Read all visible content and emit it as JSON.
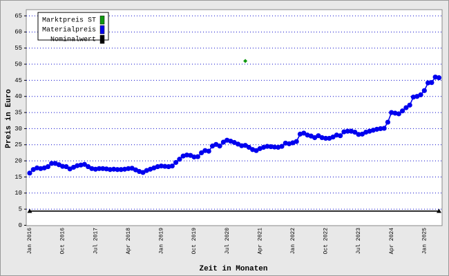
{
  "chart_data": {
    "type": "line",
    "y_label": "Preis in Euro",
    "x_label": "Zeit in Monaten",
    "legend": "upper left",
    "grid": true,
    "ylim": [
      0,
      65
    ],
    "yticks": [
      0,
      5,
      10,
      15,
      20,
      25,
      30,
      35,
      40,
      45,
      50,
      55,
      60,
      65
    ],
    "categories": [
      "Jan 2016",
      null,
      null,
      null,
      null,
      null,
      null,
      null,
      null,
      "Oct 2016",
      null,
      null,
      null,
      null,
      null,
      null,
      null,
      null,
      "Jul 2017",
      null,
      null,
      null,
      null,
      null,
      null,
      null,
      null,
      "Apr 2018",
      null,
      null,
      null,
      null,
      null,
      null,
      null,
      null,
      "Jan 2019",
      null,
      null,
      null,
      null,
      null,
      null,
      null,
      null,
      "Oct 2019",
      null,
      null,
      null,
      null,
      null,
      null,
      null,
      null,
      "Jul 2020",
      null,
      null,
      null,
      null,
      null,
      null,
      null,
      null,
      "Apr 2021",
      null,
      null,
      null,
      null,
      null,
      null,
      null,
      null,
      "Jan 2022",
      null,
      null,
      null,
      null,
      null,
      null,
      null,
      null,
      "Oct 2022",
      null,
      null,
      null,
      null,
      null,
      null,
      null,
      null,
      "Jul 2023",
      null,
      null,
      null,
      null,
      null,
      null,
      null,
      null,
      "Apr 2024",
      null,
      null,
      null,
      null,
      null,
      null,
      null,
      null,
      "Jan 2025",
      null,
      null,
      null,
      null
    ],
    "series": [
      {
        "name": "Marktpreis ST",
        "color": "#119911",
        "marker": "diamond",
        "values": [
          null,
          null,
          null,
          null,
          null,
          null,
          null,
          null,
          null,
          null,
          null,
          null,
          null,
          null,
          null,
          null,
          null,
          null,
          null,
          null,
          null,
          null,
          null,
          null,
          null,
          null,
          null,
          null,
          null,
          null,
          null,
          null,
          null,
          null,
          null,
          null,
          null,
          null,
          null,
          null,
          null,
          null,
          null,
          null,
          null,
          null,
          null,
          null,
          null,
          null,
          null,
          null,
          null,
          null,
          null,
          null,
          null,
          null,
          null,
          51,
          null,
          null,
          null,
          null,
          null,
          null,
          null,
          null,
          null,
          null,
          null,
          null,
          null,
          null,
          null,
          null,
          null,
          null,
          null,
          null,
          null,
          null,
          null,
          null,
          null,
          null,
          null,
          null,
          null,
          null,
          null,
          null,
          null,
          null,
          null,
          null,
          null,
          null,
          null,
          null,
          null,
          null,
          null,
          null,
          null,
          null,
          null,
          null,
          null,
          null,
          null,
          null,
          null
        ]
      },
      {
        "name": "Materialpreis",
        "color": "#0000ee",
        "marker": "circle",
        "values": [
          16.2,
          17.3,
          17.8,
          17.6,
          17.8,
          18.2,
          19.2,
          19.2,
          18.8,
          18.3,
          18.2,
          17.5,
          18.0,
          18.5,
          18.7,
          18.9,
          18.2,
          17.6,
          17.4,
          17.6,
          17.6,
          17.5,
          17.3,
          17.4,
          17.3,
          17.3,
          17.4,
          17.6,
          17.7,
          17.2,
          16.7,
          16.4,
          17.0,
          17.4,
          17.8,
          18.2,
          18.4,
          18.3,
          18.2,
          18.4,
          19.5,
          20.5,
          21.5,
          21.8,
          21.7,
          21.2,
          21.3,
          22.5,
          23.2,
          23.0,
          24.6,
          25.1,
          24.6,
          25.8,
          26.4,
          26.1,
          25.7,
          25.2,
          24.7,
          24.8,
          24.2,
          23.5,
          23.2,
          23.8,
          24.2,
          24.5,
          24.4,
          24.3,
          24.2,
          24.5,
          25.5,
          25.3,
          25.6,
          26.0,
          28.3,
          28.6,
          28.0,
          27.7,
          27.2,
          27.8,
          27.2,
          27.0,
          27.0,
          27.4,
          28.0,
          27.8,
          29.0,
          29.2,
          29.2,
          28.9,
          28.2,
          28.3,
          28.9,
          29.2,
          29.5,
          29.8,
          30.0,
          30.1,
          32.0,
          35.0,
          34.8,
          34.6,
          35.5,
          36.5,
          37.3,
          39.8,
          40.0,
          40.5,
          41.8,
          44.2,
          44.3,
          46.0,
          45.8
        ]
      },
      {
        "name": "Nominalwert",
        "color": "#000000",
        "marker": "triangle",
        "values": [
          4.4,
          4.4,
          4.4,
          4.4,
          4.4,
          4.4,
          4.4,
          4.4,
          4.4,
          4.4,
          4.4,
          4.4,
          4.4,
          4.4,
          4.4,
          4.4,
          4.4,
          4.4,
          4.4,
          4.4,
          4.4,
          4.4,
          4.4,
          4.4,
          4.4,
          4.4,
          4.4,
          4.4,
          4.4,
          4.4,
          4.4,
          4.4,
          4.4,
          4.4,
          4.4,
          4.4,
          4.4,
          4.4,
          4.4,
          4.4,
          4.4,
          4.4,
          4.4,
          4.4,
          4.4,
          4.4,
          4.4,
          4.4,
          4.4,
          4.4,
          4.4,
          4.4,
          4.4,
          4.4,
          4.4,
          4.4,
          4.4,
          4.4,
          4.4,
          4.4,
          4.4,
          4.4,
          4.4,
          4.4,
          4.4,
          4.4,
          4.4,
          4.4,
          4.4,
          4.4,
          4.4,
          4.4,
          4.4,
          4.4,
          4.4,
          4.4,
          4.4,
          4.4,
          4.4,
          4.4,
          4.4,
          4.4,
          4.4,
          4.4,
          4.4,
          4.4,
          4.4,
          4.4,
          4.4,
          4.4,
          4.4,
          4.4,
          4.4,
          4.4,
          4.4,
          4.4,
          4.4,
          4.4,
          4.4,
          4.4,
          4.4,
          4.4,
          4.4,
          4.4,
          4.4,
          4.4,
          4.4,
          4.4,
          4.4,
          4.4,
          4.4,
          4.4,
          4.4
        ]
      }
    ]
  }
}
